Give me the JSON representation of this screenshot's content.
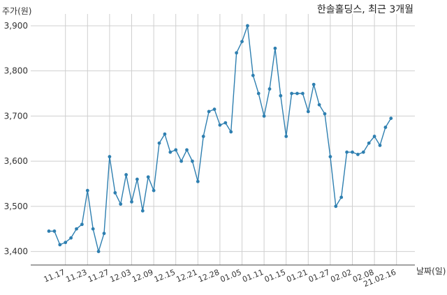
{
  "chart_data": {
    "type": "line",
    "title": "한솔홀딩스, 최근 3개월",
    "ylabel": "주가(원)",
    "xlabel": "날짜(일)",
    "ylim": [
      3370,
      3920
    ],
    "yticks": [
      3400,
      3500,
      3600,
      3700,
      3800,
      3900
    ],
    "ytick_labels": [
      "3,400",
      "3,500",
      "3,600",
      "3,700",
      "3,800",
      "3,900"
    ],
    "grid": true,
    "line_color": "#2e7fb0",
    "x_labels": [
      "11.17",
      "11.23",
      "11.27",
      "12.03",
      "12.09",
      "12.15",
      "12.21",
      "12.28",
      "01.05",
      "01.11",
      "01.15",
      "01.21",
      "01.27",
      "02.02",
      "02.08",
      "21.02.16"
    ],
    "x_label_indices": [
      3,
      7,
      11,
      15,
      19,
      23,
      27,
      31,
      35,
      39,
      43,
      47,
      51,
      55,
      59,
      63
    ],
    "values": [
      3445,
      3445,
      3415,
      3420,
      3430,
      3450,
      3460,
      3535,
      3450,
      3400,
      3440,
      3610,
      3530,
      3505,
      3570,
      3510,
      3560,
      3490,
      3565,
      3535,
      3640,
      3660,
      3620,
      3625,
      3600,
      3625,
      3600,
      3555,
      3655,
      3710,
      3715,
      3680,
      3685,
      3665,
      3840,
      3865,
      3900,
      3790,
      3750,
      3700,
      3760,
      3850,
      3745,
      3655,
      3750,
      3750,
      3750,
      3710,
      3770,
      3725,
      3705,
      3610,
      3500,
      3520,
      3620,
      3620,
      3615,
      3620,
      3640,
      3655,
      3635,
      3675,
      3695
    ]
  }
}
